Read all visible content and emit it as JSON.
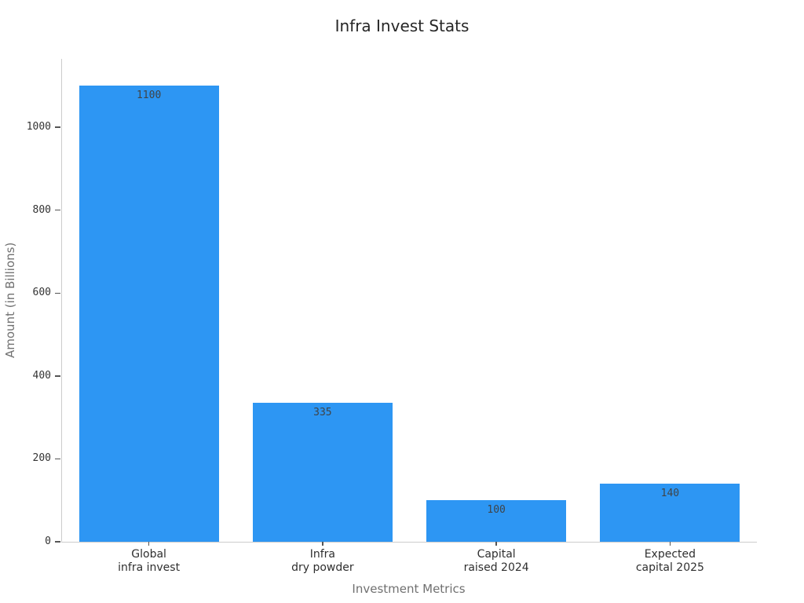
{
  "chart_data": {
    "type": "bar",
    "title": "Infra Invest Stats",
    "xlabel": "Investment Metrics",
    "ylabel": "Amount (in Billions)",
    "categories": [
      "Global\ninfra invest",
      "Infra\ndry powder",
      "Capital\nraised 2024",
      "Expected\ncapital 2025"
    ],
    "values": [
      1100,
      335,
      100,
      140
    ],
    "bar_labels": [
      "1100",
      "335",
      "100",
      "140"
    ],
    "yticks": [
      0,
      200,
      400,
      600,
      800,
      1000
    ],
    "ylim": [
      0,
      1165
    ],
    "grid": false,
    "legend": null,
    "colors": {
      "bar": "#2d96f3",
      "spine": "#cccccc",
      "tick_mark": "#555555",
      "tick_text": "#333333",
      "axis_label_text": "#707070",
      "title_text": "#262626",
      "background": "#ffffff"
    }
  }
}
